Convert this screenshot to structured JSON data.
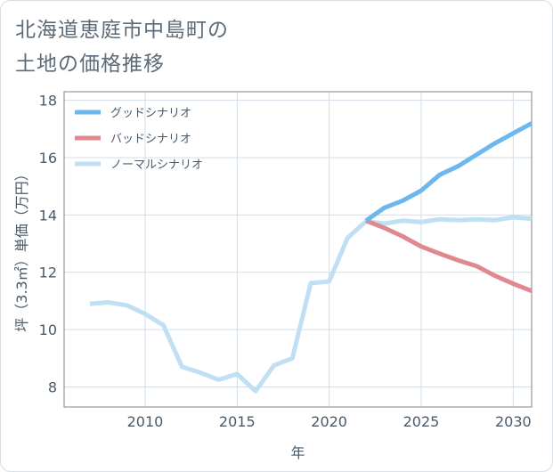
{
  "title_lines": [
    "北海道恵庭市中島町の",
    "土地の価格推移"
  ],
  "colors": {
    "good": "#6cb8ee",
    "bad": "#e08890",
    "normal": "#bfe0f2",
    "grid": "#d2dde6",
    "frame": "#7a8590"
  },
  "chart_data": {
    "type": "line",
    "title": "北海道恵庭市中島町の土地の価格推移",
    "xlabel": "年",
    "ylabel": "坪（3.3㎡）単価（万円）",
    "xlim": [
      2005.6,
      2031
    ],
    "ylim": [
      7.3,
      18.3
    ],
    "xticks": [
      2010,
      2015,
      2020,
      2025,
      2030
    ],
    "yticks": [
      8,
      10,
      12,
      14,
      16,
      18
    ],
    "grid": true,
    "legend_position": "top-left",
    "series": [
      {
        "name": "グッドシナリオ",
        "color_key": "good",
        "x": [
          2022,
          2023,
          2024,
          2025,
          2026,
          2027,
          2028,
          2029,
          2030,
          2031
        ],
        "y": [
          13.8,
          14.25,
          14.5,
          14.85,
          15.4,
          15.7,
          16.1,
          16.5,
          16.85,
          17.2
        ]
      },
      {
        "name": "バッドシナリオ",
        "color_key": "bad",
        "x": [
          2022,
          2023,
          2024,
          2025,
          2026,
          2027,
          2028,
          2029,
          2030,
          2031
        ],
        "y": [
          13.8,
          13.55,
          13.25,
          12.9,
          12.65,
          12.42,
          12.22,
          11.88,
          11.6,
          11.35
        ]
      },
      {
        "name": "ノーマルシナリオ",
        "color_key": "normal",
        "x": [
          2007,
          2008,
          2009,
          2010,
          2011,
          2012,
          2013,
          2014,
          2015,
          2016,
          2017,
          2018,
          2019,
          2020,
          2021,
          2022,
          2023,
          2024,
          2025,
          2026,
          2027,
          2028,
          2029,
          2030,
          2031
        ],
        "y": [
          10.9,
          10.95,
          10.85,
          10.55,
          10.15,
          8.7,
          8.5,
          8.25,
          8.45,
          7.85,
          8.75,
          9.0,
          11.62,
          11.68,
          13.2,
          13.78,
          13.7,
          13.8,
          13.75,
          13.85,
          13.82,
          13.85,
          13.82,
          13.92,
          13.87
        ]
      }
    ]
  }
}
